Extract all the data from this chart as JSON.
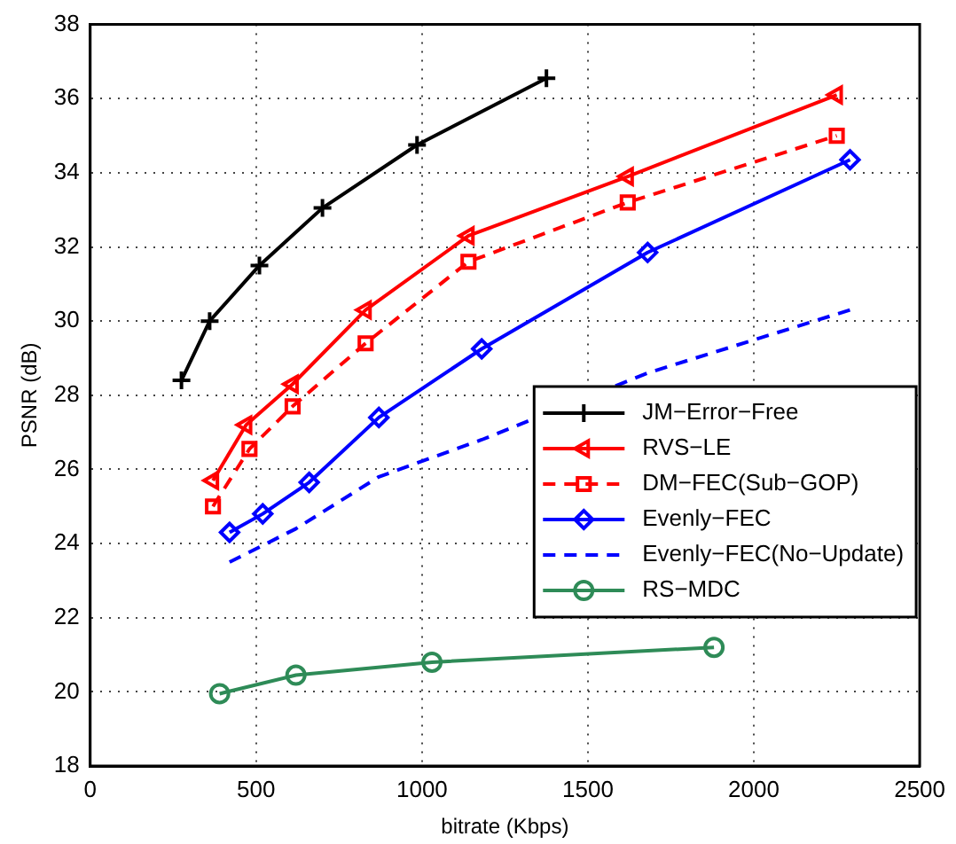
{
  "chart_data": {
    "type": "line",
    "xlabel": "bitrate (Kbps)",
    "ylabel": "PSNR (dB)",
    "xlim": [
      0,
      2500
    ],
    "xticks": [
      0,
      500,
      1000,
      1500,
      2000,
      2500
    ],
    "ylim": [
      18,
      38
    ],
    "yticks": [
      18,
      20,
      22,
      24,
      26,
      28,
      30,
      32,
      34,
      36,
      38
    ],
    "grid": true,
    "legend": "bottom right",
    "line_style": "solid",
    "series": [
      {
        "name": "JM−Error−Free",
        "color": "#000000",
        "marker": "cross",
        "x": [
          275,
          360,
          510,
          700,
          985,
          1375
        ],
        "values": [
          28.4,
          30.0,
          31.5,
          33.05,
          34.75,
          36.55
        ]
      },
      {
        "name": "RVS−LE",
        "color": "#ff0000",
        "marker": "triangle",
        "x": [
          370,
          470,
          610,
          830,
          1140,
          1620,
          2250
        ],
        "values": [
          25.7,
          27.2,
          28.3,
          30.3,
          32.3,
          33.9,
          36.1
        ]
      },
      {
        "name": "DM−FEC(Sub−GOP)",
        "color": "#ff0000",
        "marker": "square",
        "line_style": "dashed",
        "x": [
          370,
          480,
          610,
          830,
          1140,
          1620,
          2250
        ],
        "values": [
          25.0,
          26.55,
          27.7,
          29.4,
          31.6,
          33.2,
          35.0
        ]
      },
      {
        "name": "Evenly−FEC",
        "color": "#0000ff",
        "marker": "diamond",
        "x": [
          420,
          520,
          660,
          870,
          1180,
          1680,
          2290
        ],
        "values": [
          24.3,
          24.8,
          25.65,
          27.4,
          29.25,
          31.85,
          34.35
        ]
      },
      {
        "name": "Evenly−FEC(No−Update)",
        "color": "#0000ff",
        "marker": "none",
        "line_style": "dashed",
        "x": [
          420,
          620,
          870,
          1180,
          1680,
          2290
        ],
        "values": [
          23.5,
          24.4,
          25.8,
          26.8,
          28.6,
          30.3
        ]
      },
      {
        "name": "RS−MDC",
        "color": "#2e8b57",
        "marker": "circle",
        "x": [
          390,
          620,
          1030,
          1880
        ],
        "values": [
          19.95,
          20.45,
          20.8,
          21.2
        ]
      }
    ]
  }
}
